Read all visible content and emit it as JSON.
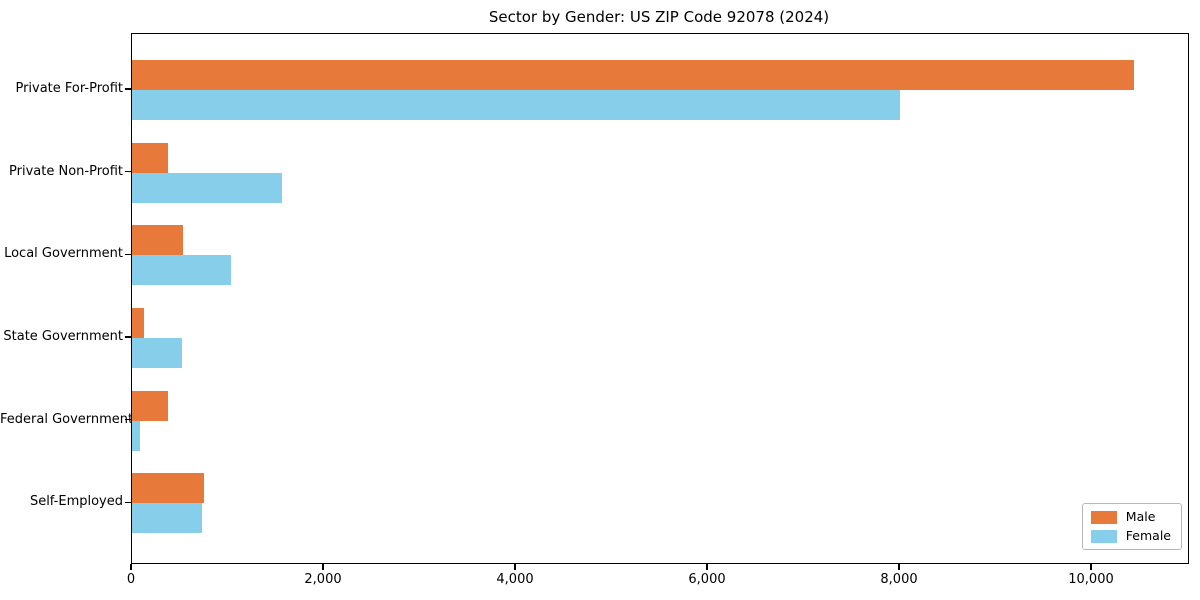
{
  "title": "Sector by Gender: US ZIP Code 92078 (2024)",
  "chart_data": {
    "type": "bar",
    "orientation": "horizontal",
    "title": "Sector by Gender: US ZIP Code 92078 (2024)",
    "categories": [
      "Private For-Profit",
      "Private Non-Profit",
      "Local Government",
      "State Government",
      "Federal Government",
      "Self-Employed"
    ],
    "series": [
      {
        "name": "Male",
        "color": "#e7793a",
        "values": [
          10440,
          370,
          530,
          130,
          375,
          750
        ]
      },
      {
        "name": "Female",
        "color": "#87ceeb",
        "values": [
          8000,
          1560,
          1030,
          520,
          85,
          730
        ]
      }
    ],
    "xlim": [
      0,
      11000
    ],
    "xticks": [
      0,
      2000,
      4000,
      6000,
      8000,
      10000
    ],
    "xtick_labels": [
      "0",
      "2,000",
      "4,000",
      "6,000",
      "8,000",
      "10,000"
    ],
    "legend": {
      "position": "lower-right",
      "entries": [
        "Male",
        "Female"
      ]
    },
    "grid": false,
    "background": "#ffffff",
    "axis_color": "#000000"
  }
}
